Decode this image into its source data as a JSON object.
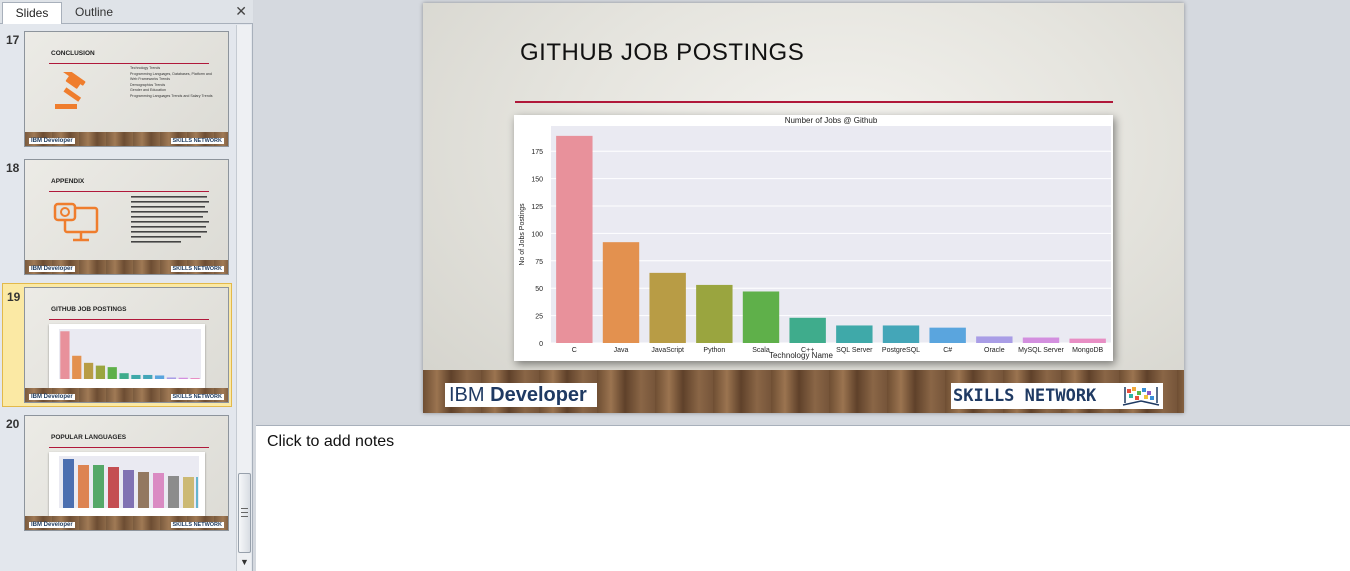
{
  "pane_tabs": {
    "slides": "Slides",
    "outline": "Outline",
    "close": "✕"
  },
  "thumbnails": [
    {
      "number": "17",
      "title": "CONCLUSION",
      "bullets": [
        "Technology Trends",
        "Programming Languages, Databases, Platform and Web Frameworks Trends",
        "Demographics Trends",
        "Gender and Education",
        "Programming Languages Trends and Salary Trends"
      ]
    },
    {
      "number": "18",
      "title": "APPENDIX"
    },
    {
      "number": "19",
      "title": "GITHUB JOB POSTINGS"
    },
    {
      "number": "20",
      "title": "POPULAR LANGUAGES"
    }
  ],
  "footer": {
    "ibm_light": "IBM ",
    "ibm_bold": "Developer",
    "skills": "SKILLS NETWORK"
  },
  "slide": {
    "title": "GITHUB JOB POSTINGS"
  },
  "notes": {
    "placeholder": "Click to add notes"
  },
  "colors": {
    "accent_rule": "#b0183a",
    "plot_bg": "#eaeaf2"
  },
  "chart_data": {
    "type": "bar",
    "title": "Number of Jobs @ Github",
    "xlabel": "Technology Name",
    "ylabel": "No of Jobs Postings",
    "categories": [
      "C",
      "Java",
      "JavaScript",
      "Python",
      "Scala",
      "C++",
      "SQL Server",
      "PostgreSQL",
      "C#",
      "Oracle",
      "MySQL Server",
      "MongoDB"
    ],
    "values": [
      189,
      92,
      64,
      53,
      47,
      23,
      16,
      16,
      14,
      6,
      5,
      4
    ],
    "colors": [
      "#e8919b",
      "#e3914f",
      "#b89c45",
      "#9aa53f",
      "#5fb04a",
      "#3fac8c",
      "#3fa9a9",
      "#44a6b8",
      "#5aa5de",
      "#a99de6",
      "#d38fdf",
      "#e88ec4"
    ],
    "yticks": [
      0,
      25,
      50,
      75,
      100,
      125,
      150,
      175
    ],
    "ylim": [
      0,
      198
    ],
    "grid": true
  }
}
